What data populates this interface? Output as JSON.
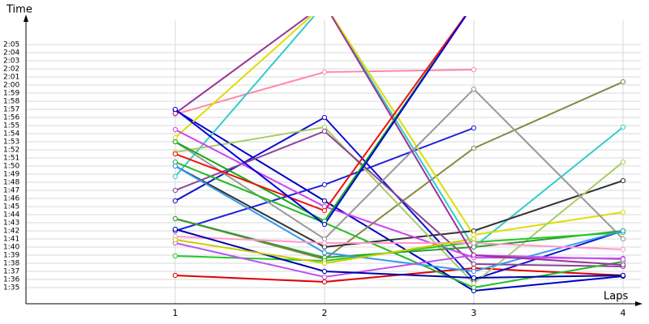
{
  "chart_data": {
    "type": "line",
    "xlabel": "Laps",
    "ylabel": "Time",
    "xlim": [
      0,
      4
    ],
    "xticks": [
      1,
      2,
      3,
      4
    ],
    "ylim": [
      93,
      128.5
    ],
    "yticks": [
      {
        "value": 95,
        "label": "1:35"
      },
      {
        "value": 96,
        "label": "1:36"
      },
      {
        "value": 97,
        "label": "1:37"
      },
      {
        "value": 98,
        "label": "1:38"
      },
      {
        "value": 99,
        "label": "1:39"
      },
      {
        "value": 100,
        "label": "1:40"
      },
      {
        "value": 101,
        "label": "1:41"
      },
      {
        "value": 102,
        "label": "1:42"
      },
      {
        "value": 103,
        "label": "1:43"
      },
      {
        "value": 104,
        "label": "1:44"
      },
      {
        "value": 105,
        "label": "1:45"
      },
      {
        "value": 106,
        "label": "1:46"
      },
      {
        "value": 107,
        "label": "1:47"
      },
      {
        "value": 108,
        "label": "1:48"
      },
      {
        "value": 109,
        "label": "1:49"
      },
      {
        "value": 110,
        "label": "1:50"
      },
      {
        "value": 111,
        "label": "1:51"
      },
      {
        "value": 112,
        "label": "1:52"
      },
      {
        "value": 113,
        "label": "1:53"
      },
      {
        "value": 114,
        "label": "1:54"
      },
      {
        "value": 115,
        "label": "1:55"
      },
      {
        "value": 116,
        "label": "1:56"
      },
      {
        "value": 117,
        "label": "1:57"
      },
      {
        "value": 118,
        "label": "1:58"
      },
      {
        "value": 119,
        "label": "1:59"
      },
      {
        "value": 120,
        "label": "2:00"
      },
      {
        "value": 121,
        "label": "2:01"
      },
      {
        "value": 122,
        "label": "2:02"
      },
      {
        "value": 123,
        "label": "2:03"
      },
      {
        "value": 124,
        "label": "2:04"
      },
      {
        "value": 125,
        "label": "2:05"
      }
    ],
    "grid": true,
    "series": [
      {
        "color": "#e00000",
        "values": [
          96.5,
          95.7,
          97.4,
          96.5
        ]
      },
      {
        "color": "#ff88aa",
        "values": [
          116.4,
          121.6,
          121.9,
          null
        ]
      },
      {
        "color": "#0000c0",
        "values": [
          116.9,
          105.7,
          94.6,
          96.4
        ]
      },
      {
        "color": "#2020e0",
        "values": [
          102.0,
          107.7,
          114.7,
          null
        ]
      },
      {
        "color": "#1010d0",
        "values": [
          105.7,
          116.0,
          96.0,
          102.0
        ]
      },
      {
        "color": "#888844",
        "values": [
          103.5,
          98.5,
          112.2,
          120.4
        ]
      },
      {
        "color": "#33cccc",
        "values": [
          108.7,
          130,
          100.0,
          114.8
        ]
      },
      {
        "color": "#333333",
        "values": [
          110.0,
          100.0,
          102.0,
          108.2
        ]
      },
      {
        "color": "#dddd00",
        "values": [
          113.5,
          130,
          101.5,
          104.3
        ]
      },
      {
        "color": "#aacc66",
        "values": [
          111.7,
          114.8,
          95.5,
          110.5
        ]
      },
      {
        "color": "#999999",
        "values": [
          113.0,
          101.0,
          119.5,
          101.0
        ]
      },
      {
        "color": "#884499",
        "values": [
          107.0,
          114.3,
          97.9,
          97.6
        ]
      },
      {
        "color": "#cc44ee",
        "values": [
          114.5,
          105.0,
          98.7,
          98.6
        ]
      },
      {
        "color": "#22bb22",
        "values": [
          110.5,
          103.0,
          95.0,
          98.2
        ]
      },
      {
        "color": "#339933",
        "values": [
          103.5,
          98.7,
          100.0,
          102.0
        ]
      },
      {
        "color": "#22cc22",
        "values": [
          98.9,
          98.3,
          100.6,
          101.8
        ]
      },
      {
        "color": "#3399ee",
        "values": [
          110.0,
          99.3,
          97.0,
          102.0
        ]
      },
      {
        "color": "#bb55ee",
        "values": [
          100.5,
          96.3,
          99.0,
          98.5
        ]
      },
      {
        "color": "#ff99cc",
        "values": [
          101.3,
          100.5,
          100.5,
          99.7
        ]
      },
      {
        "color": "#0000aa",
        "values": [
          102.2,
          97.0,
          96.2,
          96.5
        ]
      },
      {
        "color": "#cccc00",
        "values": [
          100.9,
          98.0,
          101.0,
          null
        ]
      },
      {
        "color": "#993399",
        "values": [
          116.5,
          130,
          99.0,
          97.8
        ]
      },
      {
        "color": "#11aa11",
        "values": [
          113.0,
          103.2,
          130,
          null
        ]
      },
      {
        "color": "#ee1111",
        "values": [
          111.5,
          104.5,
          130,
          null
        ]
      },
      {
        "color": "#0000dd",
        "values": [
          117.0,
          102.8,
          130,
          null
        ]
      }
    ]
  }
}
